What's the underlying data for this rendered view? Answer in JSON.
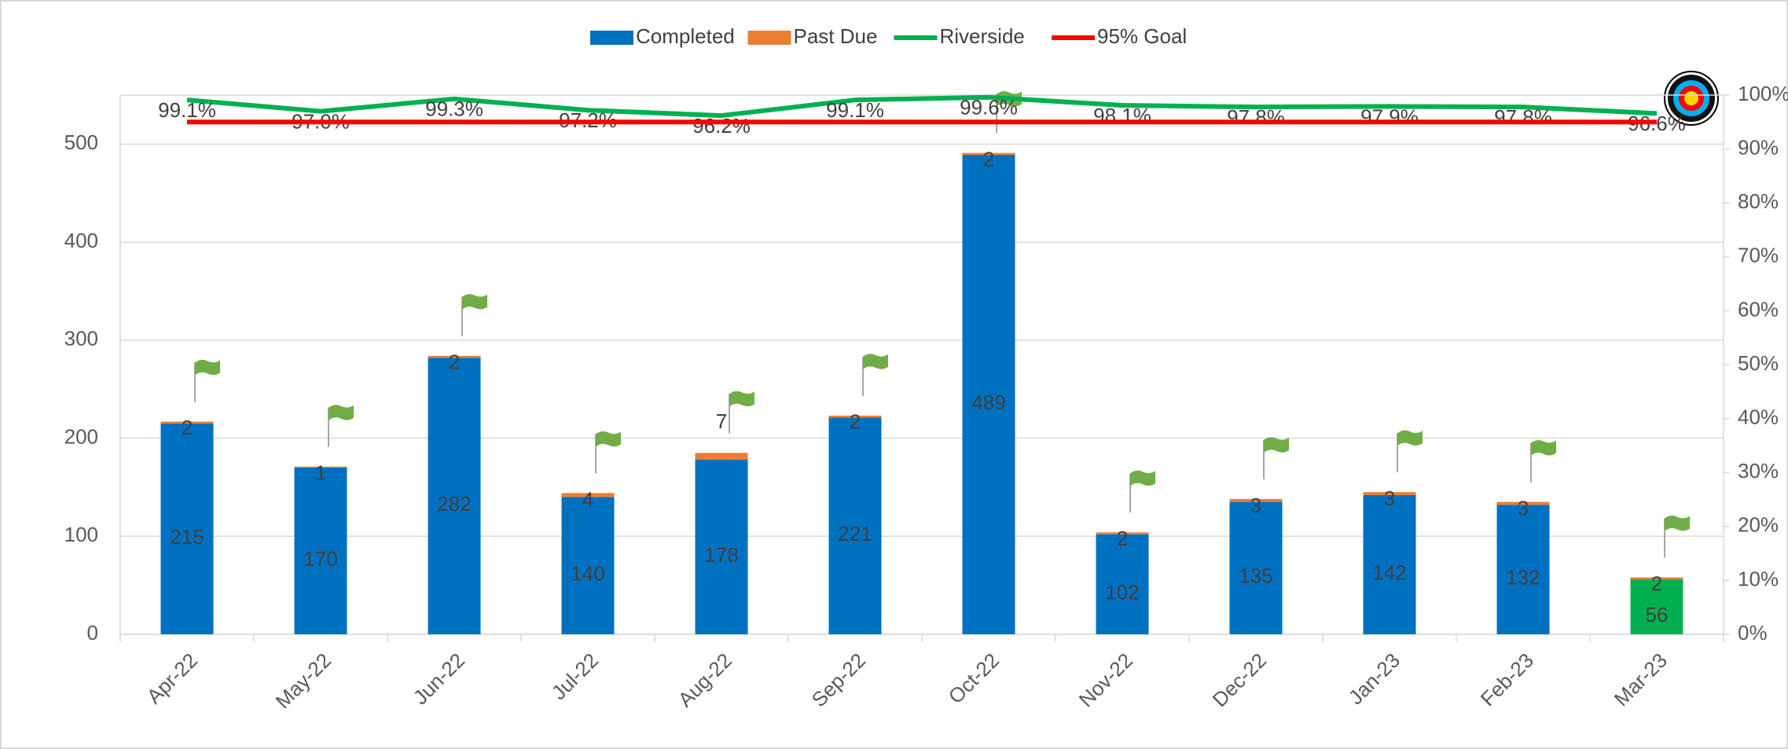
{
  "chart_data": {
    "type": "bar",
    "categories": [
      "Apr-22",
      "May-22",
      "Jun-22",
      "Jul-22",
      "Aug-22",
      "Sep-22",
      "Oct-22",
      "Nov-22",
      "Dec-22",
      "Jan-23",
      "Feb-23",
      "Mar-23"
    ],
    "series": [
      {
        "name": "Completed",
        "type": "bar",
        "color": "#0070c0",
        "colors": [
          "#0070c0",
          "#0070c0",
          "#0070c0",
          "#0070c0",
          "#0070c0",
          "#0070c0",
          "#0070c0",
          "#0070c0",
          "#0070c0",
          "#0070c0",
          "#0070c0",
          "#00b050"
        ],
        "values": [
          215,
          170,
          282,
          140,
          178,
          221,
          489,
          102,
          135,
          142,
          132,
          56
        ]
      },
      {
        "name": "Past Due",
        "type": "bar",
        "color": "#ed7d31",
        "values": [
          2,
          1,
          2,
          4,
          7,
          2,
          2,
          2,
          3,
          3,
          3,
          2
        ]
      },
      {
        "name": "Riverside",
        "type": "line",
        "axis": "y2",
        "color": "#00b050",
        "values": [
          99.1,
          97.0,
          99.3,
          97.2,
          96.2,
          99.1,
          99.6,
          98.1,
          97.8,
          97.9,
          97.8,
          96.6
        ],
        "value_labels": [
          "99.1%",
          "97.0%",
          "99.3%",
          "97.2%",
          "96.2%",
          "99.1%",
          "99.6%",
          "98.1%",
          "97.8%",
          "97.9%",
          "97.8%",
          "96.6%"
        ]
      },
      {
        "name": "95% Goal",
        "type": "line",
        "axis": "y2",
        "color": "#ff0000",
        "values": [
          95,
          95,
          95,
          95,
          95,
          95,
          95,
          95,
          95,
          95,
          95,
          95
        ]
      }
    ],
    "stacked": true,
    "ylim": [
      0,
      550
    ],
    "yticks": [
      0,
      100,
      200,
      300,
      400,
      500
    ],
    "y2lim": [
      0,
      100
    ],
    "y2ticks": [
      {
        "value": 0,
        "label": "0%"
      },
      {
        "value": 10,
        "label": "10%"
      },
      {
        "value": 20,
        "label": "20%"
      },
      {
        "value": 30,
        "label": "30%"
      },
      {
        "value": 40,
        "label": "40%"
      },
      {
        "value": 50,
        "label": "50%"
      },
      {
        "value": 60,
        "label": "60%"
      },
      {
        "value": 70,
        "label": "70%"
      },
      {
        "value": 80,
        "label": "80%"
      },
      {
        "value": 90,
        "label": "90%"
      },
      {
        "value": 100,
        "label": "100%"
      }
    ],
    "grid": true,
    "legend": "top"
  }
}
